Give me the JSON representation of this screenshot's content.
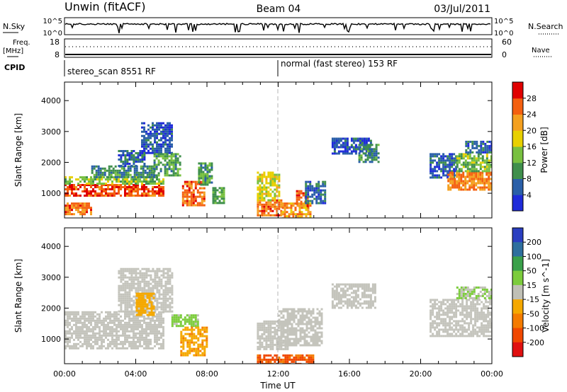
{
  "header": {
    "station": "Unwin (fitACF)",
    "beam": "Beam 04",
    "date": "03/Jul/2011"
  },
  "nsky_panel": {
    "left_label": "N.Sky",
    "right_label": "N.Search",
    "left_ticks": [
      "10^5",
      "10^0"
    ],
    "right_ticks": [
      "10^5",
      "10^0"
    ]
  },
  "freq_panel": {
    "left_label_line1": "Freq.",
    "left_label_line2": "[MHz]",
    "right_label": "Nave",
    "left_ticks": [
      "18",
      "8"
    ],
    "right_ticks": [
      "60",
      "0"
    ]
  },
  "cpid_panel": {
    "label": "CPID",
    "segments": [
      {
        "text": "stereo_scan 8551 RF",
        "start_hour": 0,
        "end_hour": 12
      },
      {
        "text": "normal (fast stereo) 153 RF",
        "start_hour": 12,
        "end_hour": 24
      }
    ]
  },
  "colors": {
    "power_scale": [
      "#1f2bd9",
      "#2a5fa8",
      "#3f8f4c",
      "#78c040",
      "#e8d000",
      "#f4a020",
      "#f46010",
      "#e00000"
    ],
    "velocity_scale": [
      "#2a3ec0",
      "#2e6f9e",
      "#3aa04a",
      "#7ccc3c",
      "#c0c0b6",
      "#f5a800",
      "#f47b00",
      "#f04800",
      "#e01010"
    ],
    "ground_scatter": "#c4c4bc",
    "reference_line": "#b4b4b4"
  },
  "chart_data": [
    {
      "type": "heatmap",
      "id": "power",
      "title": "",
      "xlabel": "",
      "ylabel": "Slant Range [km]",
      "xlim": [
        0,
        24
      ],
      "ylim": [
        200,
        4600
      ],
      "y_ticks": [
        1000,
        2000,
        3000,
        4000
      ],
      "colorbar": {
        "label": "Power [dB]",
        "tick_labels": [
          "4",
          "8",
          "12",
          "16",
          "20",
          "24",
          "28"
        ],
        "range": [
          0,
          32
        ]
      },
      "regions": [
        {
          "x_start": 0.0,
          "x_end": 1.5,
          "y_start": 300,
          "y_end": 700,
          "value": 25
        },
        {
          "x_start": 0.0,
          "x_end": 5.5,
          "y_start": 900,
          "y_end": 1300,
          "value": 27
        },
        {
          "x_start": 0.0,
          "x_end": 5.5,
          "y_start": 1300,
          "y_end": 1550,
          "value": 14
        },
        {
          "x_start": 1.5,
          "x_end": 5.0,
          "y_start": 1550,
          "y_end": 1900,
          "value": 9
        },
        {
          "x_start": 3.0,
          "x_end": 4.5,
          "y_start": 1900,
          "y_end": 2400,
          "value": 6
        },
        {
          "x_start": 4.3,
          "x_end": 6.0,
          "y_start": 2300,
          "y_end": 3300,
          "value": 5
        },
        {
          "x_start": 5.0,
          "x_end": 6.5,
          "y_start": 1600,
          "y_end": 2300,
          "value": 11
        },
        {
          "x_start": 6.6,
          "x_end": 7.8,
          "y_start": 600,
          "y_end": 1400,
          "value": 26
        },
        {
          "x_start": 7.5,
          "x_end": 8.3,
          "y_start": 1300,
          "y_end": 2000,
          "value": 10
        },
        {
          "x_start": 8.3,
          "x_end": 9.0,
          "y_start": 700,
          "y_end": 1200,
          "value": 12
        },
        {
          "x_start": 10.8,
          "x_end": 12.2,
          "y_start": 300,
          "y_end": 800,
          "value": 25
        },
        {
          "x_start": 10.8,
          "x_end": 12.0,
          "y_start": 800,
          "y_end": 1700,
          "value": 18
        },
        {
          "x_start": 12.2,
          "x_end": 13.8,
          "y_start": 200,
          "y_end": 700,
          "value": 22
        },
        {
          "x_start": 13.0,
          "x_end": 13.6,
          "y_start": 600,
          "y_end": 1100,
          "value": 27
        },
        {
          "x_start": 13.5,
          "x_end": 14.6,
          "y_start": 700,
          "y_end": 1400,
          "value": 6
        },
        {
          "x_start": 15.0,
          "x_end": 17.2,
          "y_start": 2300,
          "y_end": 2800,
          "value": 5
        },
        {
          "x_start": 16.5,
          "x_end": 17.6,
          "y_start": 2000,
          "y_end": 2600,
          "value": 9
        },
        {
          "x_start": 20.5,
          "x_end": 22.0,
          "y_start": 1500,
          "y_end": 2300,
          "value": 6
        },
        {
          "x_start": 21.5,
          "x_end": 24.0,
          "y_start": 1100,
          "y_end": 1700,
          "value": 24
        },
        {
          "x_start": 22.0,
          "x_end": 24.0,
          "y_start": 1700,
          "y_end": 2300,
          "value": 13
        },
        {
          "x_start": 22.5,
          "x_end": 24.0,
          "y_start": 2300,
          "y_end": 2700,
          "value": 6
        }
      ]
    },
    {
      "type": "heatmap",
      "id": "velocity",
      "title": "",
      "xlabel": "Time UT",
      "ylabel": "Slant Range [km]",
      "xlim": [
        0,
        24
      ],
      "ylim": [
        200,
        4600
      ],
      "x_ticks": [
        "00:00",
        "04:00",
        "08:00",
        "12:00",
        "16:00",
        "20:00",
        "00:00"
      ],
      "y_ticks": [
        1000,
        2000,
        3000,
        4000
      ],
      "colorbar": {
        "label": "Velocity [m s^-1]",
        "tick_labels": [
          "200",
          "100",
          "50",
          "15",
          "-15",
          "-50",
          "-100",
          "-200"
        ],
        "range": [
          -250,
          250
        ]
      },
      "regions": [
        {
          "x_start": 0.0,
          "x_end": 5.5,
          "y_start": 700,
          "y_end": 1900,
          "value": 0
        },
        {
          "x_start": 3.0,
          "x_end": 6.0,
          "y_start": 1900,
          "y_end": 3300,
          "value": 0
        },
        {
          "x_start": 4.0,
          "x_end": 5.0,
          "y_start": 1800,
          "y_end": 2500,
          "value": -60
        },
        {
          "x_start": 6.0,
          "x_end": 7.5,
          "y_start": 1400,
          "y_end": 1800,
          "value": 40
        },
        {
          "x_start": 6.5,
          "x_end": 8.0,
          "y_start": 500,
          "y_end": 1400,
          "value": -70
        },
        {
          "x_start": 10.8,
          "x_end": 12.5,
          "y_start": 700,
          "y_end": 1600,
          "value": 0
        },
        {
          "x_start": 12.0,
          "x_end": 14.5,
          "y_start": 800,
          "y_end": 2000,
          "value": 0
        },
        {
          "x_start": 10.8,
          "x_end": 14.0,
          "y_start": 200,
          "y_end": 500,
          "value": -150
        },
        {
          "x_start": 15.0,
          "x_end": 17.5,
          "y_start": 2000,
          "y_end": 2800,
          "value": 0
        },
        {
          "x_start": 20.5,
          "x_end": 24.0,
          "y_start": 1100,
          "y_end": 2300,
          "value": 0
        },
        {
          "x_start": 22.0,
          "x_end": 24.0,
          "y_start": 2300,
          "y_end": 2700,
          "value": 30
        }
      ]
    }
  ]
}
